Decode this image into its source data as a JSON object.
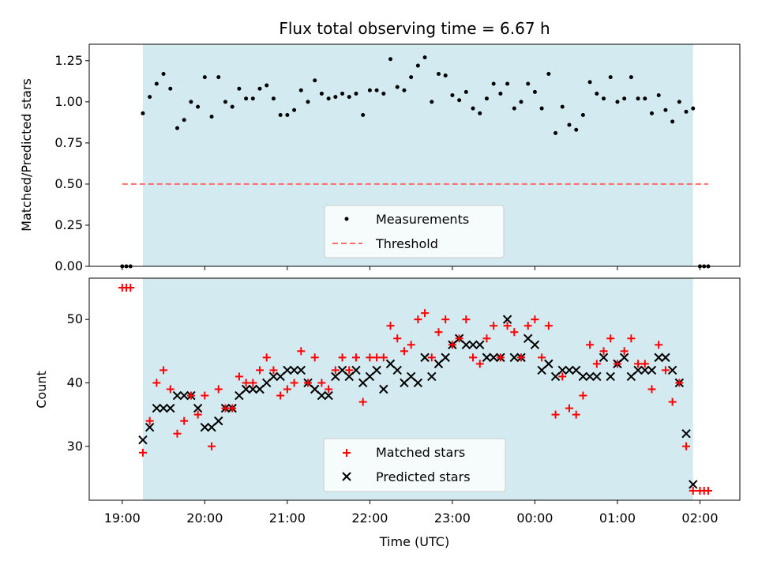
{
  "chart_data": [
    {
      "type": "scatter",
      "title": "Flux total observing time = 6.67 h",
      "ylabel": "Matched/Predicted stars",
      "xlabel": "",
      "ylim": [
        0,
        1.35
      ],
      "xlim": [
        "18:36",
        "02:29"
      ],
      "yticks": [
        0.0,
        0.25,
        0.5,
        0.75,
        1.0,
        1.25
      ],
      "ytick_labels": [
        "0.00",
        "0.25",
        "0.50",
        "0.75",
        "1.00",
        "1.25"
      ],
      "shaded_window": {
        "start": "19:15",
        "end": "01:55",
        "color": "#d3eaf0"
      },
      "threshold": {
        "value": 0.5,
        "from": "19:00",
        "to": "02:06",
        "color": "#ff6b6b",
        "style": "dashed"
      },
      "legend": {
        "placement": "lower-center",
        "entries": [
          "Measurements",
          "Threshold"
        ]
      },
      "series": [
        {
          "name": "Measurements",
          "color": "#000000",
          "marker": "dot",
          "x": [
            "19:00",
            "19:03",
            "19:06",
            "19:15",
            "19:20",
            "19:25",
            "19:30",
            "19:35",
            "19:40",
            "19:45",
            "19:50",
            "19:55",
            "20:00",
            "20:05",
            "20:10",
            "20:15",
            "20:20",
            "20:25",
            "20:30",
            "20:35",
            "20:40",
            "20:45",
            "20:50",
            "20:55",
            "21:00",
            "21:05",
            "21:10",
            "21:15",
            "21:20",
            "21:25",
            "21:30",
            "21:35",
            "21:40",
            "21:45",
            "21:50",
            "21:55",
            "22:00",
            "22:05",
            "22:10",
            "22:15",
            "22:20",
            "22:25",
            "22:30",
            "22:35",
            "22:40",
            "22:45",
            "22:50",
            "22:55",
            "23:00",
            "23:05",
            "23:10",
            "23:15",
            "23:20",
            "23:25",
            "23:30",
            "23:35",
            "23:40",
            "23:45",
            "23:50",
            "23:55",
            "00:00",
            "00:05",
            "00:10",
            "00:15",
            "00:20",
            "00:25",
            "00:30",
            "00:35",
            "00:40",
            "00:45",
            "00:50",
            "00:55",
            "01:00",
            "01:05",
            "01:10",
            "01:15",
            "01:20",
            "01:25",
            "01:30",
            "01:35",
            "01:40",
            "01:45",
            "01:50",
            "01:55",
            "02:00",
            "02:03",
            "02:06"
          ],
          "y": [
            0,
            0,
            0,
            0.93,
            1.03,
            1.11,
            1.17,
            1.08,
            0.84,
            0.89,
            1.0,
            0.97,
            1.15,
            0.91,
            1.15,
            1.0,
            0.97,
            1.08,
            1.02,
            1.02,
            1.08,
            1.1,
            1.02,
            0.92,
            0.92,
            0.95,
            1.07,
            1.0,
            1.13,
            1.05,
            1.02,
            1.03,
            1.05,
            1.03,
            1.05,
            0.92,
            1.07,
            1.07,
            1.05,
            1.26,
            1.09,
            1.07,
            1.15,
            1.22,
            1.27,
            1.0,
            1.17,
            1.16,
            1.04,
            1.01,
            1.06,
            0.96,
            0.93,
            1.02,
            1.11,
            1.05,
            1.11,
            0.96,
            1.0,
            1.11,
            1.06,
            0.96,
            1.17,
            0.81,
            0.97,
            0.86,
            0.83,
            0.92,
            1.12,
            1.05,
            1.02,
            1.15,
            1.0,
            1.02,
            1.15,
            1.02,
            1.02,
            0.93,
            1.04,
            0.95,
            0.88,
            1.0,
            0.94,
            0.96,
            0,
            0,
            0
          ]
        }
      ]
    },
    {
      "type": "scatter",
      "title": "",
      "xlabel": "Time (UTC)",
      "ylabel": "Count",
      "ylim": [
        21.5,
        56.5
      ],
      "xlim": [
        "18:36",
        "02:29"
      ],
      "yticks": [
        30,
        40,
        50
      ],
      "xticks": [
        "19:00",
        "20:00",
        "21:00",
        "22:00",
        "23:00",
        "00:00",
        "01:00",
        "02:00"
      ],
      "shaded_window": {
        "start": "19:15",
        "end": "01:55",
        "color": "#d3eaf0"
      },
      "legend": {
        "placement": "lower-center",
        "entries": [
          "Matched stars",
          "Predicted stars"
        ]
      },
      "series": [
        {
          "name": "Matched stars",
          "color": "#ff0000",
          "marker": "plus",
          "x": [
            "19:00",
            "19:03",
            "19:06",
            "19:15",
            "19:20",
            "19:25",
            "19:30",
            "19:35",
            "19:40",
            "19:45",
            "19:50",
            "19:55",
            "20:00",
            "20:05",
            "20:10",
            "20:15",
            "20:20",
            "20:25",
            "20:30",
            "20:35",
            "20:40",
            "20:45",
            "20:50",
            "20:55",
            "21:00",
            "21:05",
            "21:10",
            "21:15",
            "21:20",
            "21:25",
            "21:30",
            "21:35",
            "21:40",
            "21:45",
            "21:50",
            "21:55",
            "22:00",
            "22:05",
            "22:10",
            "22:15",
            "22:20",
            "22:25",
            "22:30",
            "22:35",
            "22:40",
            "22:45",
            "22:50",
            "22:55",
            "23:00",
            "23:05",
            "23:10",
            "23:15",
            "23:20",
            "23:25",
            "23:30",
            "23:35",
            "23:40",
            "23:45",
            "23:50",
            "23:55",
            "00:00",
            "00:05",
            "00:10",
            "00:15",
            "00:20",
            "00:25",
            "00:30",
            "00:35",
            "00:40",
            "00:45",
            "00:50",
            "00:55",
            "01:00",
            "01:05",
            "01:10",
            "01:15",
            "01:20",
            "01:25",
            "01:30",
            "01:35",
            "01:40",
            "01:45",
            "01:50",
            "01:55",
            "02:00",
            "02:03",
            "02:06"
          ],
          "y": [
            55,
            55,
            55,
            29,
            34,
            40,
            42,
            39,
            32,
            34,
            38,
            35,
            38,
            30,
            39,
            36,
            36,
            41,
            40,
            40,
            42,
            44,
            42,
            38,
            39,
            40,
            45,
            40,
            44,
            40,
            39,
            42,
            44,
            42,
            44,
            37,
            44,
            44,
            44,
            49,
            47,
            45,
            46,
            50,
            51,
            44,
            48,
            50,
            46,
            47,
            50,
            44,
            43,
            47,
            49,
            44,
            49,
            48,
            44,
            49,
            50,
            44,
            49,
            35,
            41,
            36,
            35,
            38,
            46,
            43,
            45,
            47,
            43,
            45,
            47,
            43,
            43,
            39,
            46,
            42,
            37,
            40,
            30,
            23,
            23,
            23,
            23
          ]
        },
        {
          "name": "Predicted stars",
          "color": "#000000",
          "marker": "x",
          "x": [
            "19:15",
            "19:20",
            "19:25",
            "19:30",
            "19:35",
            "19:40",
            "19:45",
            "19:50",
            "19:55",
            "20:00",
            "20:05",
            "20:10",
            "20:15",
            "20:20",
            "20:25",
            "20:30",
            "20:35",
            "20:40",
            "20:45",
            "20:50",
            "20:55",
            "21:00",
            "21:05",
            "21:10",
            "21:15",
            "21:20",
            "21:25",
            "21:30",
            "21:35",
            "21:40",
            "21:45",
            "21:50",
            "21:55",
            "22:00",
            "22:05",
            "22:10",
            "22:15",
            "22:20",
            "22:25",
            "22:30",
            "22:35",
            "22:40",
            "22:45",
            "22:50",
            "22:55",
            "23:00",
            "23:05",
            "23:10",
            "23:15",
            "23:20",
            "23:25",
            "23:30",
            "23:35",
            "23:40",
            "23:45",
            "23:50",
            "23:55",
            "00:00",
            "00:05",
            "00:10",
            "00:15",
            "00:20",
            "00:25",
            "00:30",
            "00:35",
            "00:40",
            "00:45",
            "00:50",
            "00:55",
            "01:00",
            "01:05",
            "01:10",
            "01:15",
            "01:20",
            "01:25",
            "01:30",
            "01:35",
            "01:40",
            "01:45",
            "01:50",
            "01:55"
          ],
          "y": [
            31,
            33,
            36,
            36,
            36,
            38,
            38,
            38,
            36,
            33,
            33,
            34,
            36,
            36,
            38,
            39,
            39,
            39,
            40,
            41,
            41,
            42,
            42,
            42,
            40,
            39,
            38,
            38,
            41,
            42,
            41,
            42,
            40,
            41,
            42,
            39,
            43,
            42,
            40,
            41,
            40,
            44,
            41,
            43,
            44,
            46,
            47,
            46,
            46,
            46,
            44,
            44,
            44,
            50,
            44,
            44,
            47,
            46,
            42,
            43,
            41,
            42,
            42,
            42,
            41,
            41,
            41,
            44,
            41,
            43,
            44,
            41,
            42,
            42,
            42,
            44,
            44,
            42,
            40,
            32,
            24
          ]
        }
      ]
    }
  ]
}
